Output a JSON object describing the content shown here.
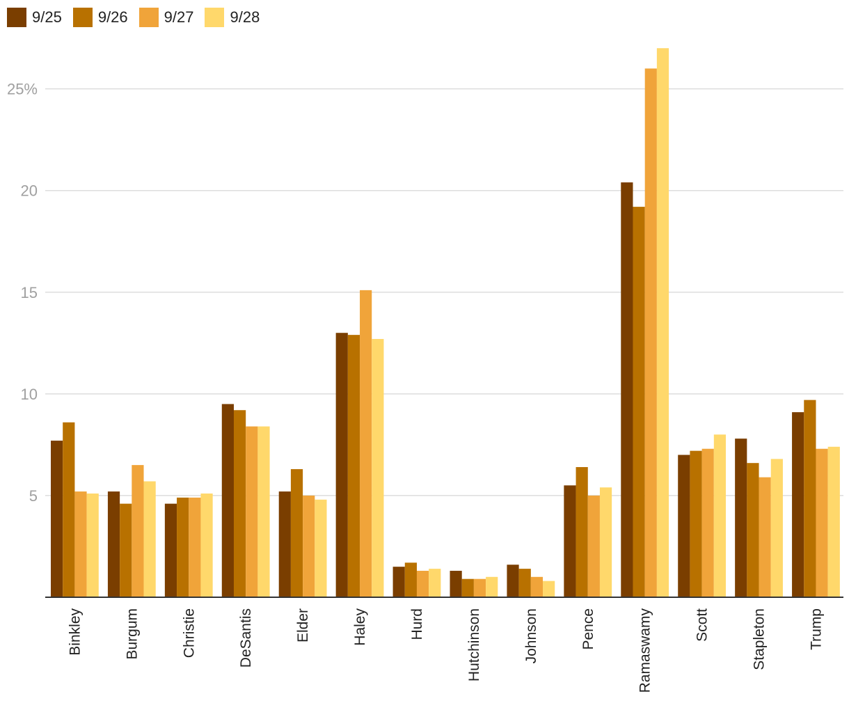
{
  "chart_data": {
    "type": "bar",
    "title": "",
    "xlabel": "",
    "ylabel": "",
    "categories": [
      "Binkley",
      "Burgum",
      "Christie",
      "DeSantis",
      "Elder",
      "Haley",
      "Hurd",
      "Hutchinson",
      "Johnson",
      "Pence",
      "Ramaswamy",
      "Scott",
      "Stapleton",
      "Trump"
    ],
    "series": [
      {
        "name": "9/25",
        "color": "#7a3e00",
        "values": [
          7.7,
          5.2,
          4.6,
          9.5,
          5.2,
          13.0,
          1.5,
          1.3,
          1.6,
          5.5,
          20.4,
          7.0,
          7.8,
          9.1
        ]
      },
      {
        "name": "9/26",
        "color": "#b87100",
        "values": [
          8.6,
          4.6,
          4.9,
          9.2,
          6.3,
          12.9,
          1.7,
          0.9,
          1.4,
          6.4,
          19.2,
          7.2,
          6.6,
          9.7
        ]
      },
      {
        "name": "9/27",
        "color": "#f0a43a",
        "values": [
          5.2,
          6.5,
          4.9,
          8.4,
          5.0,
          15.1,
          1.3,
          0.9,
          1.0,
          5.0,
          26.0,
          7.3,
          5.9,
          7.3
        ]
      },
      {
        "name": "9/28",
        "color": "#ffd86b",
        "values": [
          5.1,
          5.7,
          5.1,
          8.4,
          4.8,
          12.7,
          1.4,
          1.0,
          0.8,
          5.4,
          27.0,
          8.0,
          6.8,
          7.4
        ]
      }
    ],
    "ylim": [
      0,
      28
    ],
    "yticks": [
      5,
      10,
      15,
      20,
      25
    ],
    "ytick_labels": [
      "5",
      "10",
      "15",
      "20",
      "25%"
    ],
    "grid": true,
    "legend": "top-left"
  }
}
